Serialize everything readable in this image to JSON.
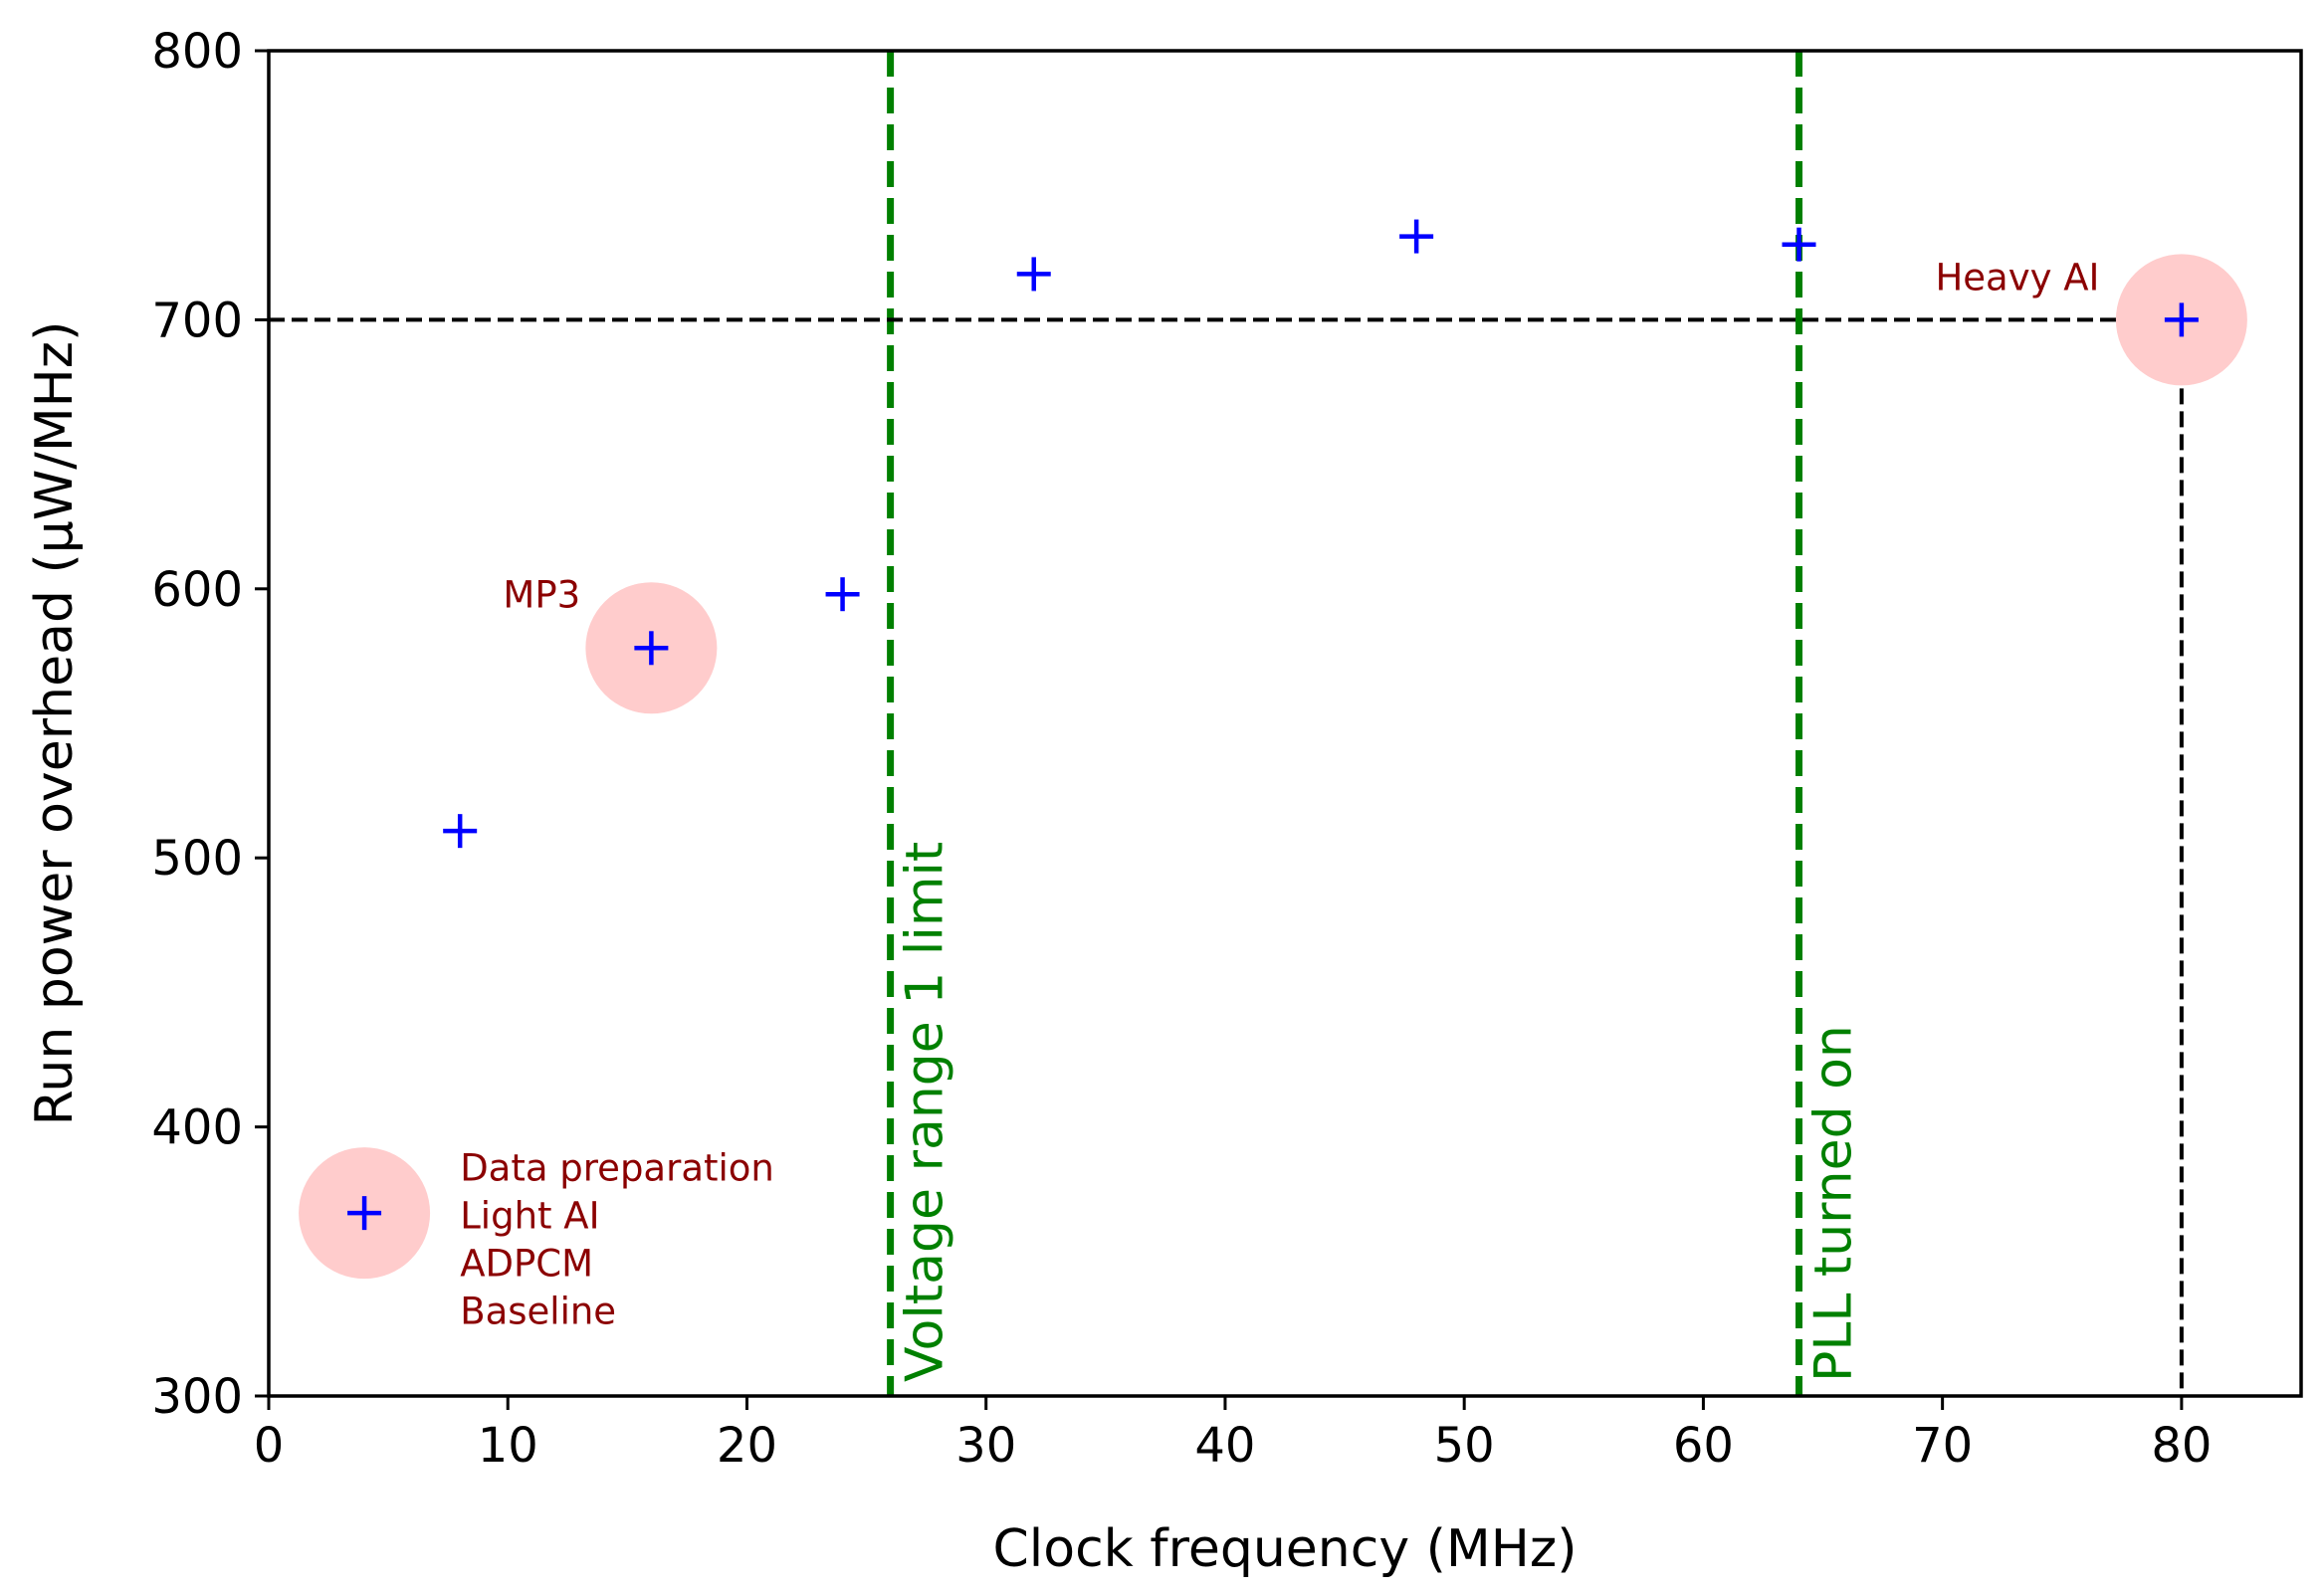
{
  "chart_data": {
    "type": "scatter",
    "title": "",
    "xlabel": "Clock frequency (MHz)",
    "ylabel": "Run power overhead (µW/MHz)",
    "xlim": [
      0,
      85
    ],
    "ylim": [
      300,
      800
    ],
    "xticks": [
      0,
      10,
      20,
      30,
      40,
      50,
      60,
      70,
      80
    ],
    "yticks": [
      300,
      400,
      500,
      600,
      700,
      800
    ],
    "grid": false,
    "series": [
      {
        "name": "measurements",
        "marker": "+",
        "color": "#0000ff",
        "x": [
          4,
          8,
          16,
          24,
          32,
          48,
          64,
          80
        ],
        "y": [
          368,
          510,
          578,
          598,
          717,
          731,
          728,
          700
        ]
      }
    ],
    "highlights": [
      {
        "x": 4,
        "y": 368,
        "color": "#ffcccc"
      },
      {
        "x": 16,
        "y": 578,
        "color": "#ffcccc"
      },
      {
        "x": 80,
        "y": 700,
        "color": "#ffcccc"
      }
    ],
    "annotations": [
      {
        "x": 8,
        "y": 380,
        "lines": [
          "Data preparation",
          "Light AI",
          "ADPCM",
          "Baseline"
        ],
        "color": "#8b0000"
      },
      {
        "x": 9.8,
        "y": 593,
        "lines": [
          "MP3"
        ],
        "color": "#8b0000"
      },
      {
        "x": 69.7,
        "y": 711,
        "lines": [
          "Heavy AI"
        ],
        "color": "#8b0000"
      }
    ],
    "vlines": [
      {
        "x": 26,
        "label": "Voltage range 1 limit",
        "color": "#008000"
      },
      {
        "x": 64,
        "label": "PLL turned on",
        "color": "#008000"
      }
    ],
    "reference_lines": {
      "hline_y": 700,
      "vline_x": 80,
      "color": "#000000"
    }
  }
}
